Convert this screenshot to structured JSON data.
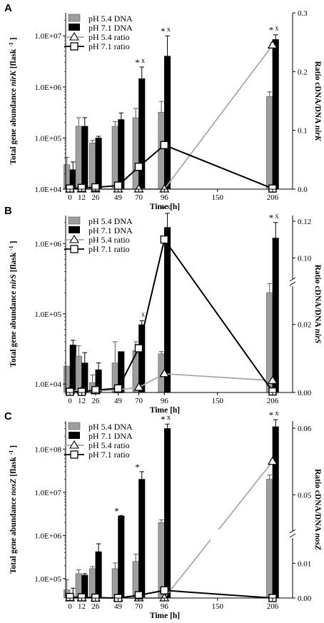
{
  "chart_data": [
    {
      "panel": "A",
      "type": "bar+line",
      "xlabel": "Time [h]",
      "ylabel_prefix": "Total gene abundance ",
      "ylabel_gene": "nirK",
      "ylabel_suffix": " [flask ",
      "ylabel_sup": "-1",
      "ylabel_end": " ]",
      "y2label_prefix": "Ratio cDNA/DNA ",
      "y2label_gene": "nirK",
      "x_ticks": [
        "0",
        "12",
        "26",
        "49",
        "70",
        "96",
        "150",
        "206"
      ],
      "y_ticks": [
        "1.0E+04",
        "1.0E+05",
        "1.0E+06",
        "1.0E+07"
      ],
      "ylim_log10": [
        4,
        7.45
      ],
      "y2_ticks": [
        "0.0",
        "0.1",
        "0.2",
        "0.3"
      ],
      "y2lim": [
        0,
        0.3
      ],
      "legend": [
        "pH 5.4 DNA",
        "pH 7.1 DNA",
        "pH 5.4 ratio",
        "pH 7.1 ratio"
      ],
      "bars": [
        {
          "time": 0,
          "ph54": 30000,
          "ph54_err": 12000,
          "ph71": 24000,
          "ph71_err": 10000
        },
        {
          "time": 12,
          "ph54": 170000,
          "ph54_err": 80000,
          "ph71": 170000,
          "ph71_err": 80000
        },
        {
          "time": 26,
          "ph54": 80000,
          "ph54_err": 10000,
          "ph71": 100000,
          "ph71_err": 8000
        },
        {
          "time": 49,
          "ph54": 170000,
          "ph54_err": 40000,
          "ph71": 230000,
          "ph71_err": 80000
        },
        {
          "time": 70,
          "ph54": 250000,
          "ph54_err": 130000,
          "ph71": 1450000,
          "ph71_err": 1000000
        },
        {
          "time": 96,
          "ph54": 320000,
          "ph54_err": 200000,
          "ph71": 4000000,
          "ph71_err": 6000000
        },
        {
          "time": 206,
          "ph54": 650000,
          "ph54_err": 150000,
          "ph71": 8500000,
          "ph71_err": 2000000
        }
      ],
      "ratio_ph54": [
        {
          "time": 0,
          "value": 0.0
        },
        {
          "time": 12,
          "value": 0.0
        },
        {
          "time": 26,
          "value": 0.0
        },
        {
          "time": 49,
          "value": 0.0
        },
        {
          "time": 70,
          "value": 0.0
        },
        {
          "time": 96,
          "value": 0.0
        },
        {
          "time": 206,
          "value": 0.245
        }
      ],
      "ratio_ph71": [
        {
          "time": 0,
          "value": 0.001
        },
        {
          "time": 12,
          "value": 0.002
        },
        {
          "time": 26,
          "value": 0.003
        },
        {
          "time": 49,
          "value": 0.006
        },
        {
          "time": 70,
          "value": 0.038
        },
        {
          "time": 96,
          "value": 0.075
        },
        {
          "time": 206,
          "value": 0.001
        }
      ],
      "annotations": [
        {
          "time": 70,
          "star": "*",
          "x": "x"
        },
        {
          "time": 96,
          "star": "*",
          "x": "x"
        },
        {
          "time": 206,
          "star": "*",
          "x": "x"
        }
      ]
    },
    {
      "panel": "B",
      "type": "bar+line",
      "xlabel": "Time [h]",
      "ylabel_prefix": "Total gene abundance ",
      "ylabel_gene": "nirS",
      "ylabel_suffix": " [flask ",
      "ylabel_sup": "-1",
      "ylabel_end": " ]",
      "y2label_prefix": "Ratio cDNA/DNA ",
      "y2label_gene": "nirS",
      "x_ticks": [
        "0",
        "12",
        "26",
        "49",
        "70",
        "96",
        "150",
        "206"
      ],
      "y_ticks": [
        "1.0E+04",
        "1.0E+05",
        "1.0E+06"
      ],
      "ylim_log10": [
        3.88,
        6.4
      ],
      "y2_ticks": [
        "0.00",
        "0.02",
        "0.10",
        "0.12"
      ],
      "y2_broken_axis": true,
      "legend": [
        "pH 5.4 DNA",
        "pH 7.1 DNA",
        "pH 5.4 ratio",
        "pH 7.1 ratio"
      ],
      "bars": [
        {
          "time": 0,
          "ph54": 18000,
          "ph54_err": 0,
          "ph71": 36000,
          "ph71_err": 6000
        },
        {
          "time": 12,
          "ph54": 25000,
          "ph54_err": 10000,
          "ph71": 20000,
          "ph71_err": 8000
        },
        {
          "time": 26,
          "ph54": 10500,
          "ph54_err": 3000,
          "ph71": 16000,
          "ph71_err": 4000
        },
        {
          "time": 49,
          "ph54": 20000,
          "ph54_err": 20000,
          "ph71": 29000,
          "ph71_err": 0
        },
        {
          "time": 70,
          "ph54": 30000,
          "ph54_err": 10000,
          "ph71": 70000,
          "ph71_err": 10000
        },
        {
          "time": 96,
          "ph54": 27000,
          "ph54_err": 2000,
          "ph71": 1700000,
          "ph71_err": 1000000
        },
        {
          "time": 206,
          "ph54": 200000,
          "ph54_err": 70000,
          "ph71": 1200000,
          "ph71_err": 800000
        }
      ],
      "ratio_ph54": [
        {
          "time": 0,
          "value": 0.0005
        },
        {
          "time": 12,
          "value": 0.0005
        },
        {
          "time": 26,
          "value": 0.0005
        },
        {
          "time": 49,
          "value": 0.0008
        },
        {
          "time": 70,
          "value": 0.0015
        },
        {
          "time": 96,
          "value": 0.0055
        },
        {
          "time": 206,
          "value": 0.0035
        }
      ],
      "ratio_ph71": [
        {
          "time": 0,
          "value": 0.0002
        },
        {
          "time": 12,
          "value": 0.0002
        },
        {
          "time": 26,
          "value": 0.0007
        },
        {
          "time": 49,
          "value": 0.0012
        },
        {
          "time": 70,
          "value": 0.013
        },
        {
          "time": 96,
          "value": 0.11
        },
        {
          "time": 206,
          "value": 0.0003
        }
      ],
      "annotations": [
        {
          "time": 70,
          "star": "",
          "x": "x"
        },
        {
          "time": 96,
          "star": "*",
          "x": "x"
        },
        {
          "time": 206,
          "star": "*",
          "x": "x"
        }
      ]
    },
    {
      "panel": "C",
      "type": "bar+line",
      "xlabel": "Time [h]",
      "ylabel_prefix": "Total gene abundance ",
      "ylabel_gene": "nosZ",
      "ylabel_suffix": " [flask ",
      "ylabel_sup": "-1",
      "ylabel_end": " ]",
      "y2label_prefix": "Ratio cDNA/DNA ",
      "y2label_gene": "nosZ",
      "x_ticks": [
        "0",
        "12",
        "26",
        "49",
        "70",
        "96",
        "150",
        "206"
      ],
      "y_ticks": [
        "1.0E+05",
        "1.0E+06",
        "1.0E+07",
        "1.0E+08"
      ],
      "ylim_log10": [
        4.55,
        8.65
      ],
      "y2_ticks": [
        "0.00",
        "0.01",
        "0.05",
        "0.06"
      ],
      "y2_broken_axis": true,
      "legend": [
        "pH 5.4 DNA",
        "pH 7.1 DNA",
        "pH 5.4 ratio",
        "pH 7.1 ratio"
      ],
      "bars": [
        {
          "time": 0,
          "ph54": 55000,
          "ph54_err": 40000,
          "ph71": 30000,
          "ph71_err": 30000
        },
        {
          "time": 12,
          "ph54": 130000,
          "ph54_err": 30000,
          "ph71": 120000,
          "ph71_err": 10000
        },
        {
          "time": 26,
          "ph54": 170000,
          "ph54_err": 20000,
          "ph71": 420000,
          "ph71_err": 220000
        },
        {
          "time": 49,
          "ph54": 170000,
          "ph54_err": 60000,
          "ph71": 2800000,
          "ph71_err": 100000
        },
        {
          "time": 70,
          "ph54": 250000,
          "ph54_err": 120000,
          "ph71": 20000000,
          "ph71_err": 10000000
        },
        {
          "time": 96,
          "ph54": 2000000,
          "ph54_err": 300000,
          "ph71": 300000000,
          "ph71_err": 80000000
        },
        {
          "time": 206,
          "ph54": 20000000,
          "ph54_err": 5000000,
          "ph71": 330000000,
          "ph71_err": 150000000
        }
      ],
      "ratio_ph54": [
        {
          "time": 0,
          "value": 0.0
        },
        {
          "time": 12,
          "value": 0.0
        },
        {
          "time": 26,
          "value": 0.0
        },
        {
          "time": 49,
          "value": 0.0
        },
        {
          "time": 70,
          "value": 0.0
        },
        {
          "time": 96,
          "value": 0.0
        },
        {
          "time": 206,
          "value": 0.055
        }
      ],
      "ratio_ph71": [
        {
          "time": 0,
          "value": 0.0003
        },
        {
          "time": 12,
          "value": 0.0002
        },
        {
          "time": 26,
          "value": 0.0001
        },
        {
          "time": 49,
          "value": 0.0
        },
        {
          "time": 70,
          "value": 0.0008
        },
        {
          "time": 96,
          "value": 0.0022
        },
        {
          "time": 206,
          "value": 0.0
        }
      ],
      "annotations": [
        {
          "time": 49,
          "star": "*",
          "x": ""
        },
        {
          "time": 70,
          "star": "*",
          "x": ""
        },
        {
          "time": 96,
          "star": "*",
          "x": "x"
        },
        {
          "time": 206,
          "star": "*",
          "x": "x"
        }
      ]
    }
  ]
}
